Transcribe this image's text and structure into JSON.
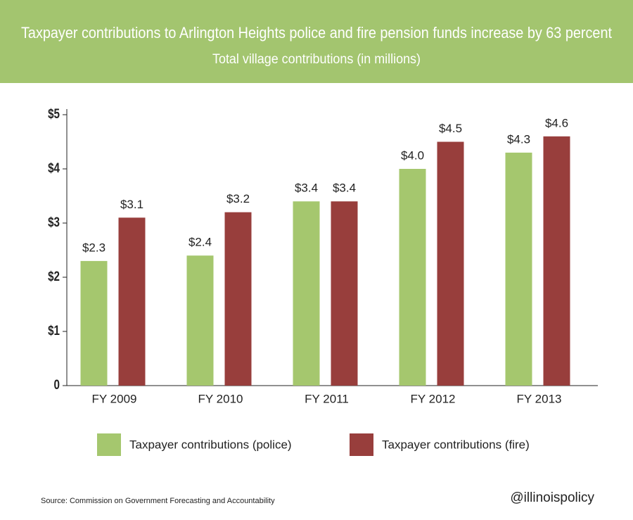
{
  "chart_data": {
    "type": "bar",
    "title": "Taxpayer contributions to Arlington Heights police and fire pension funds increase by 63 percent",
    "subtitle": "Total village contributions (in millions)",
    "categories": [
      "FY 2009",
      "FY 2010",
      "FY 2011",
      "FY 2012",
      "FY 2013"
    ],
    "series": [
      {
        "name": "Taxpayer contributions (police)",
        "color": "#a5c76e",
        "values": [
          2.3,
          2.4,
          3.4,
          4.0,
          4.3
        ],
        "value_labels": [
          "$2.3",
          "$2.4",
          "$3.4",
          "$4.0",
          "$4.3"
        ]
      },
      {
        "name": "Taxpayer contributions (fire)",
        "color": "#983e3c",
        "values": [
          3.1,
          3.2,
          3.4,
          4.5,
          4.6
        ],
        "value_labels": [
          "$3.1",
          "$3.2",
          "$3.4",
          "$4.5",
          "$4.6"
        ]
      }
    ],
    "ylim": [
      0,
      5
    ],
    "yticks": [
      0,
      {
        "value": 1,
        "label": "$1"
      },
      {
        "value": 2,
        "label": "$2"
      },
      {
        "value": 3,
        "label": "$3"
      },
      {
        "value": 4,
        "label": "$4"
      },
      {
        "value": 5,
        "label": "$5"
      }
    ],
    "grid": false,
    "legend": "bottom",
    "source": "Source: Commission on Government Forecasting and Accountability",
    "credit": "@illinoispolicy"
  }
}
